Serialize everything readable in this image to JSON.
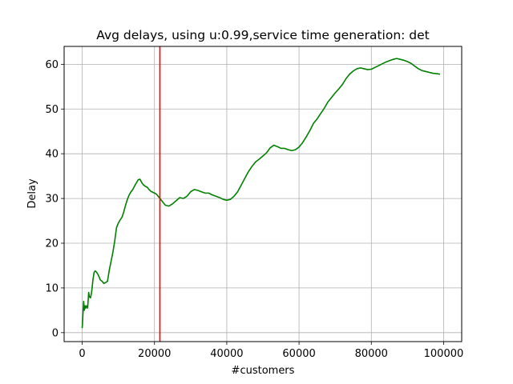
{
  "chart_data": {
    "type": "line",
    "title": "Avg delays, using u:0.99,service time generation: det",
    "xlabel": "#customers",
    "ylabel": "Delay",
    "xlim": [
      -5000,
      105000
    ],
    "ylim": [
      -2,
      64
    ],
    "xticks": [
      0,
      20000,
      40000,
      60000,
      80000,
      100000
    ],
    "xtick_labels": [
      "0",
      "20000",
      "40000",
      "60000",
      "80000",
      "100000"
    ],
    "yticks": [
      0,
      10,
      20,
      30,
      40,
      50,
      60
    ],
    "ytick_labels": [
      "0",
      "10",
      "20",
      "30",
      "40",
      "50",
      "60"
    ],
    "grid": true,
    "series": [
      {
        "color": "#008000",
        "x": [
          0,
          200,
          400,
          600,
          800,
          1000,
          1200,
          1500,
          1800,
          2000,
          2300,
          2600,
          3000,
          3300,
          3600,
          4000,
          4500,
          5000,
          5500,
          6000,
          6500,
          7000,
          7500,
          8000,
          8500,
          9000,
          9500,
          10000,
          10500,
          11000,
          11500,
          12000,
          12500,
          13000,
          13500,
          14000,
          14500,
          15000,
          15500,
          16000,
          16500,
          17000,
          17500,
          18000,
          18500,
          19000,
          19500,
          20000,
          20500,
          21000,
          22000,
          23000,
          24000,
          25000,
          26000,
          27000,
          28000,
          29000,
          30000,
          31000,
          32000,
          33000,
          34000,
          35000,
          36000,
          37000,
          38000,
          39000,
          40000,
          41000,
          42000,
          43000,
          44000,
          45000,
          46000,
          47000,
          48000,
          49000,
          50000,
          51000,
          52000,
          53000,
          54000,
          55000,
          56000,
          57000,
          58000,
          59000,
          60000,
          61000,
          62000,
          63000,
          64000,
          65000,
          66000,
          67000,
          68000,
          69000,
          70000,
          71000,
          72000,
          73000,
          74000,
          75000,
          76000,
          77000,
          78000,
          79000,
          80000,
          81000,
          82000,
          83000,
          84000,
          85000,
          86000,
          87000,
          88000,
          89000,
          90000,
          91000,
          92000,
          93000,
          94000,
          95000,
          96000,
          97000,
          98000,
          99000
        ],
        "y": [
          1,
          4,
          7,
          5,
          6,
          5.5,
          6,
          5.5,
          9,
          8,
          7.8,
          9,
          12,
          13.5,
          13.8,
          13.5,
          12.8,
          11.8,
          11.5,
          11,
          11.2,
          11.5,
          14,
          16,
          18,
          20.5,
          23.5,
          24.5,
          25.2,
          25.8,
          27,
          28.5,
          29.8,
          30.8,
          31.5,
          32,
          32.8,
          33.5,
          34.2,
          34.3,
          33.5,
          33,
          32.7,
          32.5,
          32,
          31.6,
          31.4,
          31.2,
          31,
          30.5,
          29.5,
          28.5,
          28.3,
          28.8,
          29.5,
          30.2,
          30,
          30.5,
          31.5,
          32,
          31.8,
          31.5,
          31.2,
          31.2,
          30.8,
          30.5,
          30.2,
          29.8,
          29.6,
          29.8,
          30.5,
          31.5,
          33,
          34.5,
          36,
          37.2,
          38.2,
          38.8,
          39.5,
          40.2,
          41.3,
          41.9,
          41.6,
          41.2,
          41.2,
          40.9,
          40.7,
          40.9,
          41.5,
          42.5,
          43.8,
          45.2,
          46.8,
          47.8,
          49,
          50.2,
          51.6,
          52.6,
          53.6,
          54.5,
          55.5,
          56.8,
          57.8,
          58.5,
          59,
          59.2,
          59,
          58.8,
          58.9,
          59.3,
          59.7,
          60.1,
          60.5,
          60.8,
          61.1,
          61.3,
          61.1,
          60.9,
          60.6,
          60.2,
          59.6,
          59,
          58.6,
          58.4,
          58.2,
          58,
          57.9,
          57.8
        ]
      }
    ],
    "vlines": [
      {
        "x": 21500,
        "color": "#ff0000"
      }
    ]
  }
}
